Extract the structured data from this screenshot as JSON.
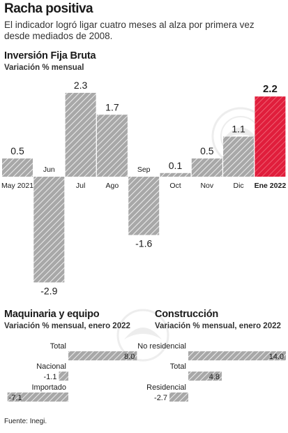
{
  "header": {
    "title": "Racha positiva",
    "subtitle": "El indicador logró ligar cuatro meses al alza por primera vez desde mediados de 2008."
  },
  "main_chart": {
    "title": "Inversión Fija Bruta",
    "subtitle": "Variación % mensual"
  },
  "machinery": {
    "title": "Maquinaria y equipo",
    "subtitle": "Variación % mensual, enero 2022"
  },
  "construction": {
    "title": "Construcción",
    "subtitle": "Variación % mensual, enero 2022"
  },
  "footer": {
    "source": "Fuente: Inegi."
  },
  "colors": {
    "highlight": "#e01e3c",
    "bar": "#a8a8a8",
    "hatch": "#ffffff",
    "text": "#1a1a1a"
  },
  "chart_data": [
    {
      "type": "bar",
      "title": "Inversión Fija Bruta",
      "subtitle": "Variación % mensual",
      "categories": [
        "May 2021",
        "Jun",
        "Jul",
        "Ago",
        "Sep",
        "Oct",
        "Nov",
        "Dic",
        "Ene 2022"
      ],
      "values": [
        0.5,
        -2.9,
        2.3,
        1.7,
        -1.6,
        0.1,
        0.5,
        1.1,
        2.2
      ],
      "value_labels": [
        "0.5",
        "-2.9",
        "2.3",
        "1.7",
        "-1.6",
        "0.1",
        "0.5",
        "1.1",
        "2.2"
      ],
      "highlight_index": 8,
      "ylim": [
        -2.9,
        2.3
      ]
    },
    {
      "type": "bar",
      "orientation": "horizontal",
      "title": "Maquinaria y equipo",
      "subtitle": "Variación % mensual, enero 2022",
      "categories": [
        "Total",
        "Nacional",
        "Importado"
      ],
      "values": [
        8.0,
        -1.1,
        -7.1
      ],
      "value_labels": [
        "8.0",
        "-1.1",
        "-7.1"
      ]
    },
    {
      "type": "bar",
      "orientation": "horizontal",
      "title": "Construcción",
      "subtitle": "Variación % mensual, enero 2022",
      "categories": [
        "No residencial",
        "Total",
        "Residencial"
      ],
      "values": [
        14.0,
        4.8,
        -2.7
      ],
      "value_labels": [
        "14.0",
        "4.8",
        "-2.7"
      ]
    }
  ]
}
